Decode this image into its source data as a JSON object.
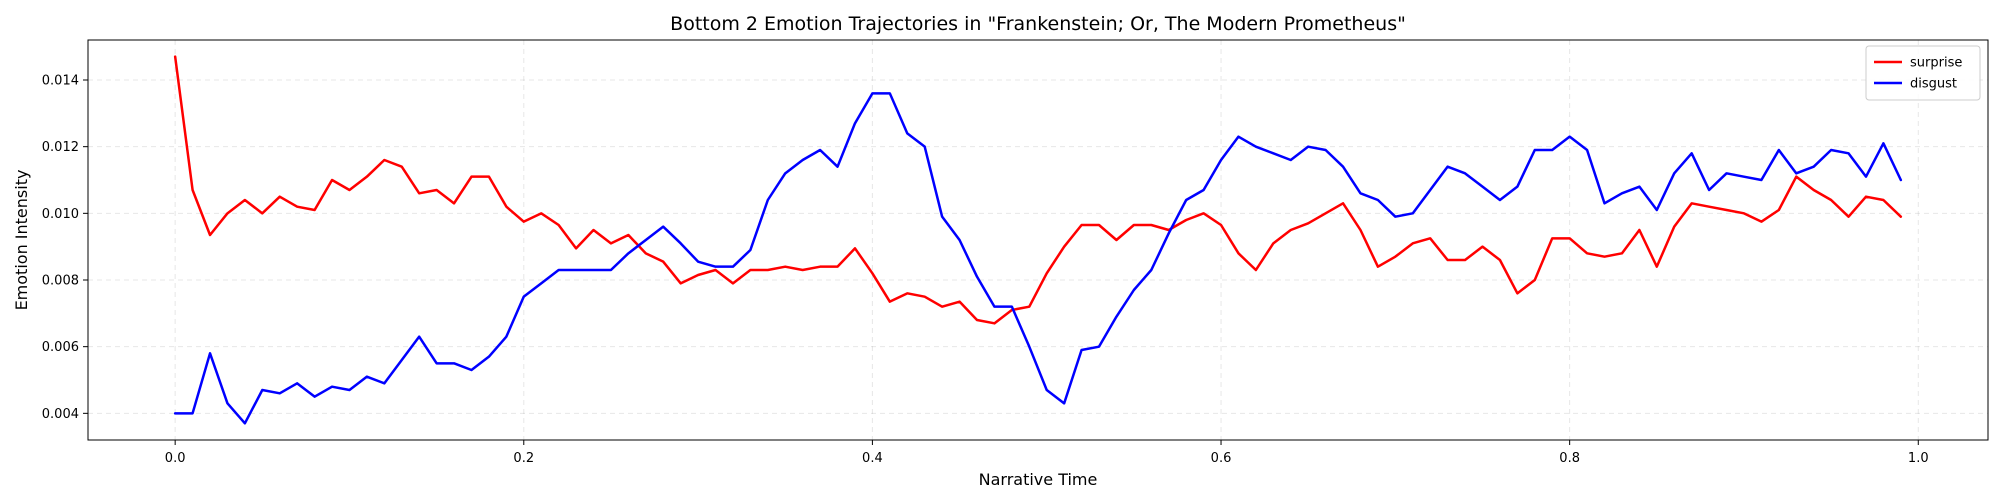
{
  "chart_data": {
    "type": "line",
    "title": "Bottom 2 Emotion Trajectories in \"Frankenstein; Or, The Modern Prometheus\"",
    "xlabel": "Narrative Time",
    "ylabel": "Emotion Intensity",
    "xlim": [
      -0.05,
      1.04
    ],
    "ylim": [
      0.0032,
      0.0152
    ],
    "xticks": [
      "0.0",
      "0.2",
      "0.4",
      "0.6",
      "0.8",
      "1.0"
    ],
    "xtick_values": [
      0.0,
      0.2,
      0.4,
      0.6,
      0.8,
      1.0
    ],
    "yticks": [
      "0.004",
      "0.006",
      "0.008",
      "0.010",
      "0.012",
      "0.014"
    ],
    "ytick_values": [
      0.004,
      0.006,
      0.008,
      0.01,
      0.012,
      0.014
    ],
    "grid": true,
    "legend_position": "top-right",
    "x": [
      0.0,
      0.01,
      0.02,
      0.03,
      0.04,
      0.05,
      0.06,
      0.07,
      0.08,
      0.09,
      0.1,
      0.11,
      0.12,
      0.13,
      0.14,
      0.15,
      0.16,
      0.17,
      0.18,
      0.19,
      0.2,
      0.21,
      0.22,
      0.23,
      0.24,
      0.25,
      0.26,
      0.27,
      0.28,
      0.29,
      0.3,
      0.31,
      0.32,
      0.33,
      0.34,
      0.35,
      0.36,
      0.37,
      0.38,
      0.39,
      0.4,
      0.41,
      0.42,
      0.43,
      0.44,
      0.45,
      0.46,
      0.47,
      0.48,
      0.49,
      0.5,
      0.51,
      0.52,
      0.53,
      0.54,
      0.55,
      0.56,
      0.57,
      0.58,
      0.59,
      0.6,
      0.61,
      0.62,
      0.63,
      0.64,
      0.65,
      0.66,
      0.67,
      0.68,
      0.69,
      0.7,
      0.71,
      0.72,
      0.73,
      0.74,
      0.75,
      0.76,
      0.77,
      0.78,
      0.79,
      0.8,
      0.81,
      0.82,
      0.83,
      0.84,
      0.85,
      0.86,
      0.87,
      0.88,
      0.89,
      0.9,
      0.91,
      0.92,
      0.93,
      0.94,
      0.95,
      0.96,
      0.97,
      0.98,
      0.99
    ],
    "series": [
      {
        "name": "surprise",
        "color": "#ff0000",
        "values": [
          0.0147,
          0.0107,
          0.00935,
          0.01,
          0.0104,
          0.01,
          0.0105,
          0.0102,
          0.0101,
          0.011,
          0.0107,
          0.0111,
          0.0116,
          0.0114,
          0.0106,
          0.0107,
          0.0103,
          0.0111,
          0.0111,
          0.0102,
          0.00975,
          0.01,
          0.00965,
          0.00895,
          0.0095,
          0.0091,
          0.00935,
          0.0088,
          0.00855,
          0.0079,
          0.00815,
          0.0083,
          0.0079,
          0.0083,
          0.0083,
          0.0084,
          0.0083,
          0.0084,
          0.0084,
          0.00895,
          0.0082,
          0.00735,
          0.0076,
          0.0075,
          0.0072,
          0.00735,
          0.0068,
          0.0067,
          0.0071,
          0.0072,
          0.0082,
          0.009,
          0.00965,
          0.00965,
          0.0092,
          0.00965,
          0.00965,
          0.0095,
          0.0098,
          0.01,
          0.00965,
          0.0088,
          0.0083,
          0.0091,
          0.0095,
          0.0097,
          0.01,
          0.0103,
          0.0095,
          0.0084,
          0.0087,
          0.0091,
          0.00925,
          0.0086,
          0.0086,
          0.009,
          0.0086,
          0.0076,
          0.008,
          0.00925,
          0.00925,
          0.0088,
          0.0087,
          0.0088,
          0.0095,
          0.0084,
          0.0096,
          0.0103,
          0.0102,
          0.0101,
          0.01,
          0.00975,
          0.0101,
          0.0111,
          0.0107,
          0.0104,
          0.0099,
          0.0105,
          0.0104,
          0.0099
        ]
      },
      {
        "name": "disgust",
        "color": "#0000ff",
        "values": [
          0.004,
          0.004,
          0.0058,
          0.0043,
          0.0037,
          0.0047,
          0.0046,
          0.0049,
          0.0045,
          0.0048,
          0.0047,
          0.0051,
          0.0049,
          0.0056,
          0.0063,
          0.0055,
          0.0055,
          0.0053,
          0.0057,
          0.0063,
          0.0075,
          0.0079,
          0.0083,
          0.0083,
          0.0083,
          0.0083,
          0.0088,
          0.0092,
          0.0096,
          0.0091,
          0.00855,
          0.0084,
          0.0084,
          0.0089,
          0.0104,
          0.0112,
          0.0116,
          0.0119,
          0.0114,
          0.0127,
          0.0136,
          0.0136,
          0.0124,
          0.012,
          0.0099,
          0.0092,
          0.0081,
          0.0072,
          0.0072,
          0.006,
          0.0047,
          0.0043,
          0.0059,
          0.006,
          0.0069,
          0.0077,
          0.0083,
          0.0094,
          0.0104,
          0.0107,
          0.0116,
          0.0123,
          0.012,
          0.0118,
          0.0116,
          0.012,
          0.0119,
          0.0114,
          0.0106,
          0.0104,
          0.0099,
          0.01,
          0.0107,
          0.0114,
          0.0112,
          0.0108,
          0.0104,
          0.0108,
          0.0119,
          0.0119,
          0.0123,
          0.0119,
          0.0103,
          0.0106,
          0.0108,
          0.0101,
          0.0112,
          0.0118,
          0.0107,
          0.0112,
          0.0111,
          0.011,
          0.0119,
          0.0112,
          0.0114,
          0.0119,
          0.0118,
          0.0111,
          0.0121,
          0.011
        ]
      }
    ]
  }
}
